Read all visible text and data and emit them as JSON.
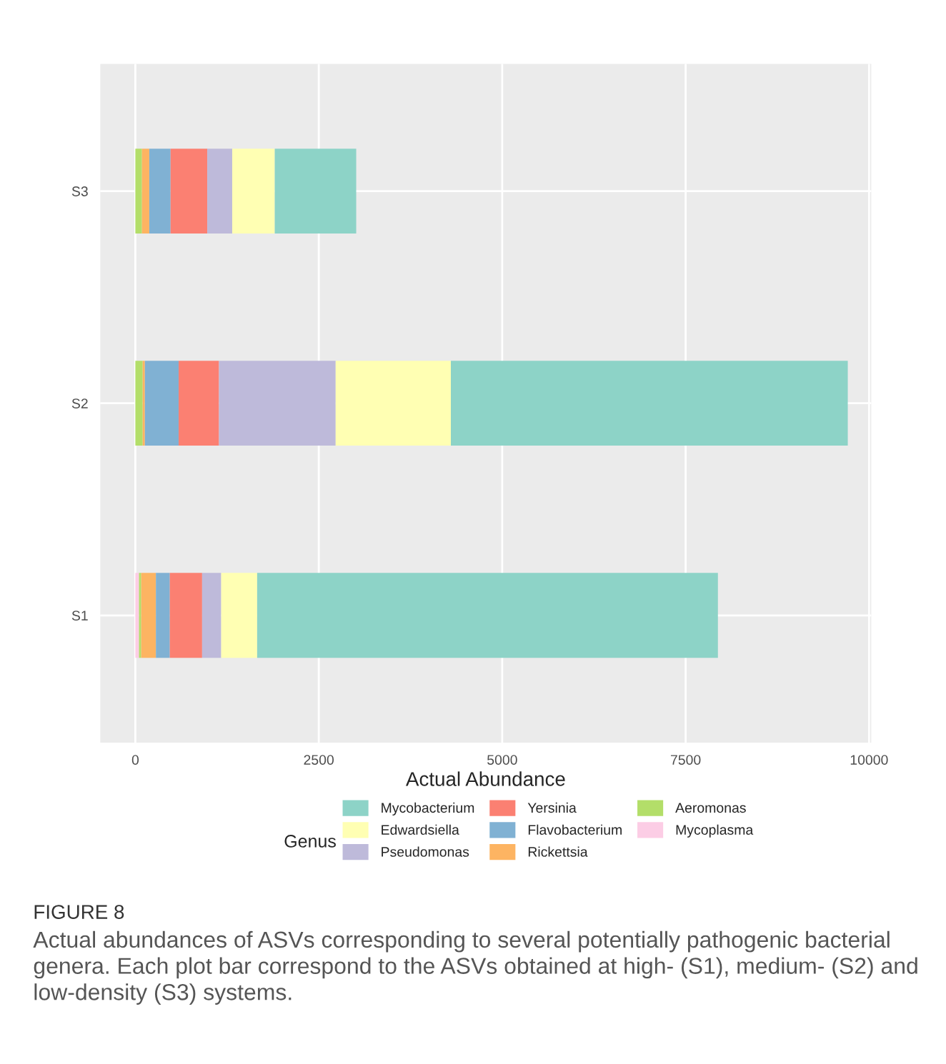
{
  "chart_data": {
    "type": "bar",
    "orientation": "horizontal",
    "stacked": true,
    "categories": [
      "S3",
      "S2",
      "S1"
    ],
    "xlabel": "Actual Abundance",
    "legend_title": "Genus",
    "xlim": [
      -478,
      10030
    ],
    "xticks": [
      0,
      2500,
      5000,
      7500,
      10000
    ],
    "grid": true,
    "legend": "bottom",
    "series": [
      {
        "name": "Mycoplasma",
        "color": "#fccde5",
        "values": [
          0,
          0,
          50
        ]
      },
      {
        "name": "Aeromonas",
        "color": "#b3de69",
        "values": [
          90,
          100,
          30
        ]
      },
      {
        "name": "Rickettsia",
        "color": "#fdb462",
        "values": [
          100,
          30,
          200
        ]
      },
      {
        "name": "Flavobacterium",
        "color": "#80b1d3",
        "values": [
          290,
          460,
          190
        ]
      },
      {
        "name": "Yersinia",
        "color": "#fb8072",
        "values": [
          500,
          550,
          440
        ]
      },
      {
        "name": "Pseudomonas",
        "color": "#bebada",
        "values": [
          340,
          1590,
          260
        ]
      },
      {
        "name": "Edwardsiella",
        "color": "#ffffb3",
        "values": [
          580,
          1570,
          490
        ]
      },
      {
        "name": "Mycobacterium",
        "color": "#8dd3c7",
        "values": [
          1110,
          5410,
          6280
        ]
      }
    ],
    "annotations": [
      "FIGURE 8",
      "Actual abundances of ASVs corresponding to several potentially pathogenic bacterial genera. Each plot bar correspond to the ASVs obtained at high- (S1), medium- (S2) and low-density (S3) systems."
    ]
  }
}
